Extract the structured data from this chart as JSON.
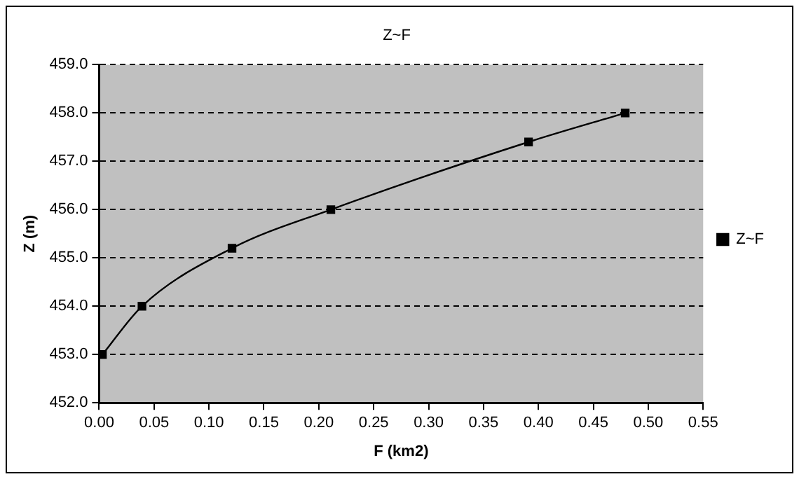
{
  "chart_data": {
    "type": "line",
    "title": "Z~F",
    "xlabel": "F (km2)",
    "ylabel": "Z (m)",
    "x": [
      0.003,
      0.039,
      0.121,
      0.211,
      0.391,
      0.479
    ],
    "series": [
      {
        "name": "Z~F",
        "color": "#000000",
        "values": [
          453.0,
          454.0,
          455.2,
          456.0,
          457.4,
          458.0
        ]
      }
    ],
    "xlim": [
      0,
      0.55
    ],
    "xticks": [
      {
        "value": 0,
        "label": "0.00"
      },
      {
        "value": 0.05,
        "label": "0.05"
      },
      {
        "value": 0.1,
        "label": "0.10"
      },
      {
        "value": 0.15,
        "label": "0.15"
      },
      {
        "value": 0.2,
        "label": "0.20"
      },
      {
        "value": 0.25,
        "label": "0.25"
      },
      {
        "value": 0.3,
        "label": "0.30"
      },
      {
        "value": 0.35,
        "label": "0.35"
      },
      {
        "value": 0.4,
        "label": "0.40"
      },
      {
        "value": 0.45,
        "label": "0.45"
      },
      {
        "value": 0.5,
        "label": "0.50"
      },
      {
        "value": 0.55,
        "label": "0.55"
      }
    ],
    "ylim": [
      452,
      459
    ],
    "yticks": [
      {
        "value": 452,
        "label": "452.0"
      },
      {
        "value": 453,
        "label": "453.0"
      },
      {
        "value": 454,
        "label": "454.0"
      },
      {
        "value": 455,
        "label": "455.0"
      },
      {
        "value": 456,
        "label": "456.0"
      },
      {
        "value": 457,
        "label": "457.0"
      },
      {
        "value": 458,
        "label": "458.0"
      },
      {
        "value": 459,
        "label": "459.0"
      }
    ],
    "grid": "y",
    "legend": "right",
    "marker": "square",
    "line_style": "solid"
  }
}
